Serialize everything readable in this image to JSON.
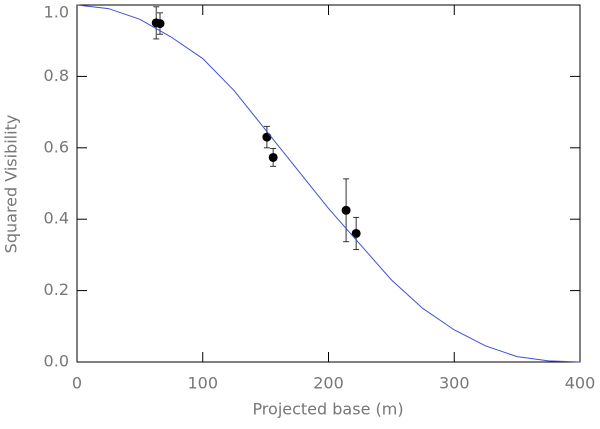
{
  "chart_data": {
    "type": "scatter",
    "xlabel": "Projected base (m)",
    "ylabel": "Squared Visibility",
    "xlim": [
      0,
      400
    ],
    "xticks": [
      0,
      100,
      200,
      300,
      400
    ],
    "ylim": [
      0,
      1.0
    ],
    "yticks": [
      {
        "value": 0,
        "label": "0.0"
      },
      {
        "value": 0.2,
        "label": "0.2"
      },
      {
        "value": 0.4,
        "label": "0.4"
      },
      {
        "value": 0.6,
        "label": "0.6"
      },
      {
        "value": 0.8,
        "label": "0.8"
      },
      {
        "value": 1.0,
        "label": "1.0"
      }
    ],
    "series": [
      {
        "kind": "points",
        "color": "#000000",
        "x": [
          63,
          66,
          151,
          156,
          214,
          222
        ],
        "values": [
          0.95,
          0.948,
          0.63,
          0.573,
          0.425,
          0.36
        ],
        "errors": [
          0.045,
          0.03,
          0.03,
          0.025,
          0.088,
          0.045
        ]
      },
      {
        "kind": "line",
        "color": "#3f51d4",
        "x": [
          0,
          25,
          50,
          75,
          100,
          125,
          150,
          175,
          200,
          225,
          250,
          275,
          300,
          325,
          350,
          375,
          400
        ],
        "values": [
          1.0,
          0.99,
          0.96,
          0.91,
          0.85,
          0.76,
          0.65,
          0.54,
          0.43,
          0.33,
          0.23,
          0.15,
          0.09,
          0.045,
          0.015,
          0.003,
          0
        ]
      }
    ]
  }
}
